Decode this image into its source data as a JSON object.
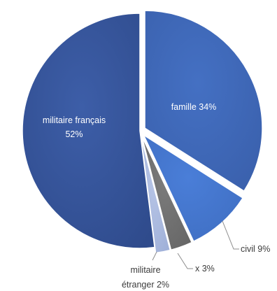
{
  "chart_data": {
    "type": "pie",
    "title": "",
    "slices": [
      {
        "label": "famille",
        "value": 34,
        "pct_text": "famille 34%",
        "color": "#4470c3",
        "color_dark": "#3a60ac"
      },
      {
        "label": "civil",
        "value": 9,
        "pct_text": "civil 9%",
        "color": "#4a7ed8",
        "color_dark": "#3f6ec2"
      },
      {
        "label": "x",
        "value": 3,
        "pct_text": "x 3%",
        "color": "#7b7b7b",
        "color_dark": "#666666"
      },
      {
        "label": "militaire étranger",
        "value": 2,
        "line1": "militaire",
        "line2": "étranger 2%",
        "color": "#b6c4e6",
        "color_dark": "#9fb0d8"
      },
      {
        "label": "militaire français",
        "value": 52,
        "line1": "militaire français",
        "line2": "52%",
        "color": "#3d5ea8",
        "color_dark": "#2f4b8c"
      }
    ],
    "legend": "none"
  }
}
